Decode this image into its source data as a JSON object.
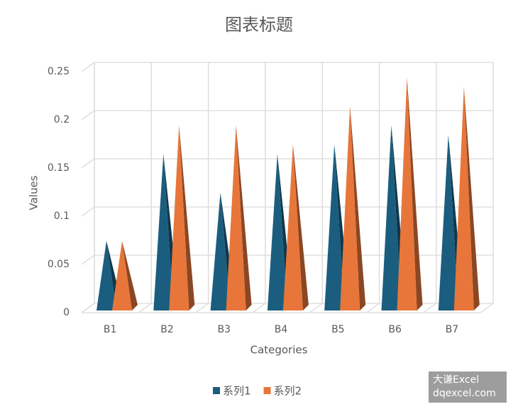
{
  "chart_data": {
    "type": "bar",
    "title": "图表标题",
    "x_label": "Categories",
    "y_label": "Values",
    "categories": [
      "B1",
      "B2",
      "B3",
      "B4",
      "B5",
      "B6",
      "B7"
    ],
    "series": [
      {
        "name": "系列1",
        "color": "#1b5d7e",
        "values": [
          0.07,
          0.16,
          0.12,
          0.16,
          0.17,
          0.19,
          0.18
        ]
      },
      {
        "name": "系列2",
        "color": "#e8763a",
        "values": [
          0.07,
          0.19,
          0.19,
          0.17,
          0.21,
          0.24,
          0.23
        ]
      }
    ],
    "ylim": [
      0,
      0.25
    ],
    "yticks": [
      0,
      0.05,
      0.1,
      0.15,
      0.2,
      0.25
    ],
    "grid": true,
    "legend": "bottom"
  },
  "watermark": [
    "大谦Excel",
    "dqexcel.com"
  ]
}
